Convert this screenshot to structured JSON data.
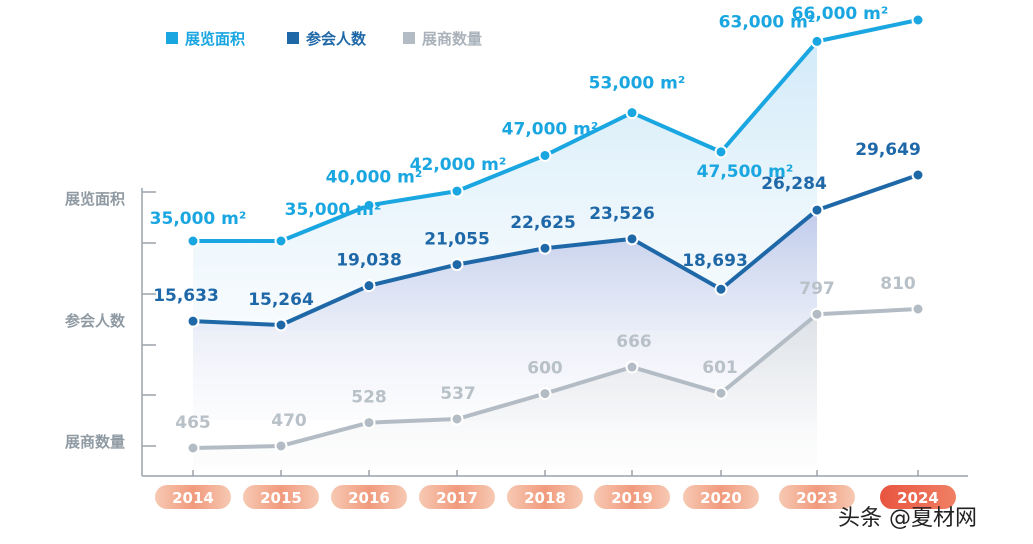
{
  "chart_data": {
    "type": "line",
    "categories": [
      "2014",
      "2015",
      "2016",
      "2017",
      "2018",
      "2019",
      "2020",
      "2023",
      "2024"
    ],
    "series": [
      {
        "name": "展览面积",
        "color": "#1aa6e0",
        "values": [
          35000,
          35000,
          40000,
          42000,
          47000,
          53000,
          47500,
          63000,
          66000
        ],
        "labels": [
          "35,000 m²",
          "35,000 m²",
          "40,000 m²",
          "42,000 m²",
          "47,000 m²",
          "53,000 m²",
          "47,500 m²",
          "63,000 m²",
          "66,000 m²"
        ]
      },
      {
        "name": "参会人数",
        "color": "#1f68a8",
        "values": [
          15633,
          15264,
          19038,
          21055,
          22625,
          23526,
          18693,
          26284,
          29649
        ],
        "labels": [
          "15,633",
          "15,264",
          "19,038",
          "21,055",
          "22,625",
          "23,526",
          "18,693",
          "26,284",
          "29,649"
        ]
      },
      {
        "name": "展商数量",
        "color": "#b3bcc4",
        "values": [
          465,
          470,
          528,
          537,
          600,
          666,
          601,
          797,
          810
        ],
        "labels": [
          "465",
          "470",
          "528",
          "537",
          "600",
          "666",
          "601",
          "797",
          "810"
        ]
      }
    ],
    "ylabels": [
      "展览面积",
      "参会人数",
      "展商数量"
    ],
    "xlabel": "",
    "ylabel": "",
    "grid": false,
    "legend_position": "top-left"
  },
  "watermark": "头条 @夏材网"
}
